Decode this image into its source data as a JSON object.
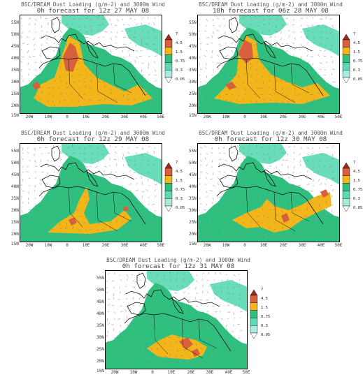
{
  "panels": [
    {
      "title": "BSC/DREAM Dust Loading (g/m-2) and 3000m Wind",
      "subtitle": "0h forecast for 12z 27 MAY 08",
      "seed": 1
    },
    {
      "title": "BSC/DREAM Dust Loading (g/m-2) and 3000m Wind",
      "subtitle": "18h forecast for 06z 28 MAY 08",
      "seed": 2
    },
    {
      "title": "BSC/DREAM Dust Loading (g/m-2) and 3000m Wind",
      "subtitle": "0h forecast for 12z 29 MAY 08",
      "seed": 3
    },
    {
      "title": "BSC/DREAM Dust Loading (g/m-2) and 3000m Wind",
      "subtitle": "0h forecast for 12z 30 MAY 08",
      "seed": 4
    },
    {
      "title": "BSC/DREAM Dust Loading (g/m-2) and 3000m Wind",
      "subtitle": "0h forecast for 12z 31 MAY 08",
      "seed": 5
    }
  ],
  "axes": {
    "lat_labels": [
      "55N",
      "50N",
      "45N",
      "40N",
      "35N",
      "30N",
      "25N",
      "20N",
      "15N"
    ],
    "lon_labels": [
      "20W",
      "10W",
      "0",
      "10E",
      "20E",
      "30E",
      "40E",
      "50E"
    ]
  },
  "legend": {
    "levels": [
      "7",
      "4.5",
      "1.5",
      "0.75",
      "0.3",
      "0.05"
    ],
    "colors": [
      "#9e2a1f",
      "#d9603a",
      "#f2b61b",
      "#2fc07f",
      "#5fd9b4",
      "#a8ecdf"
    ]
  },
  "colors": {
    "ocean": "#ffffff",
    "land_clear": "#ffffff",
    "dust_low": "#4fd6ae",
    "dust_mid": "#2fc07f",
    "dust_high": "#f2b61b",
    "dust_very_high": "#d9603a",
    "coast": "#111111",
    "wind": "#777777"
  }
}
